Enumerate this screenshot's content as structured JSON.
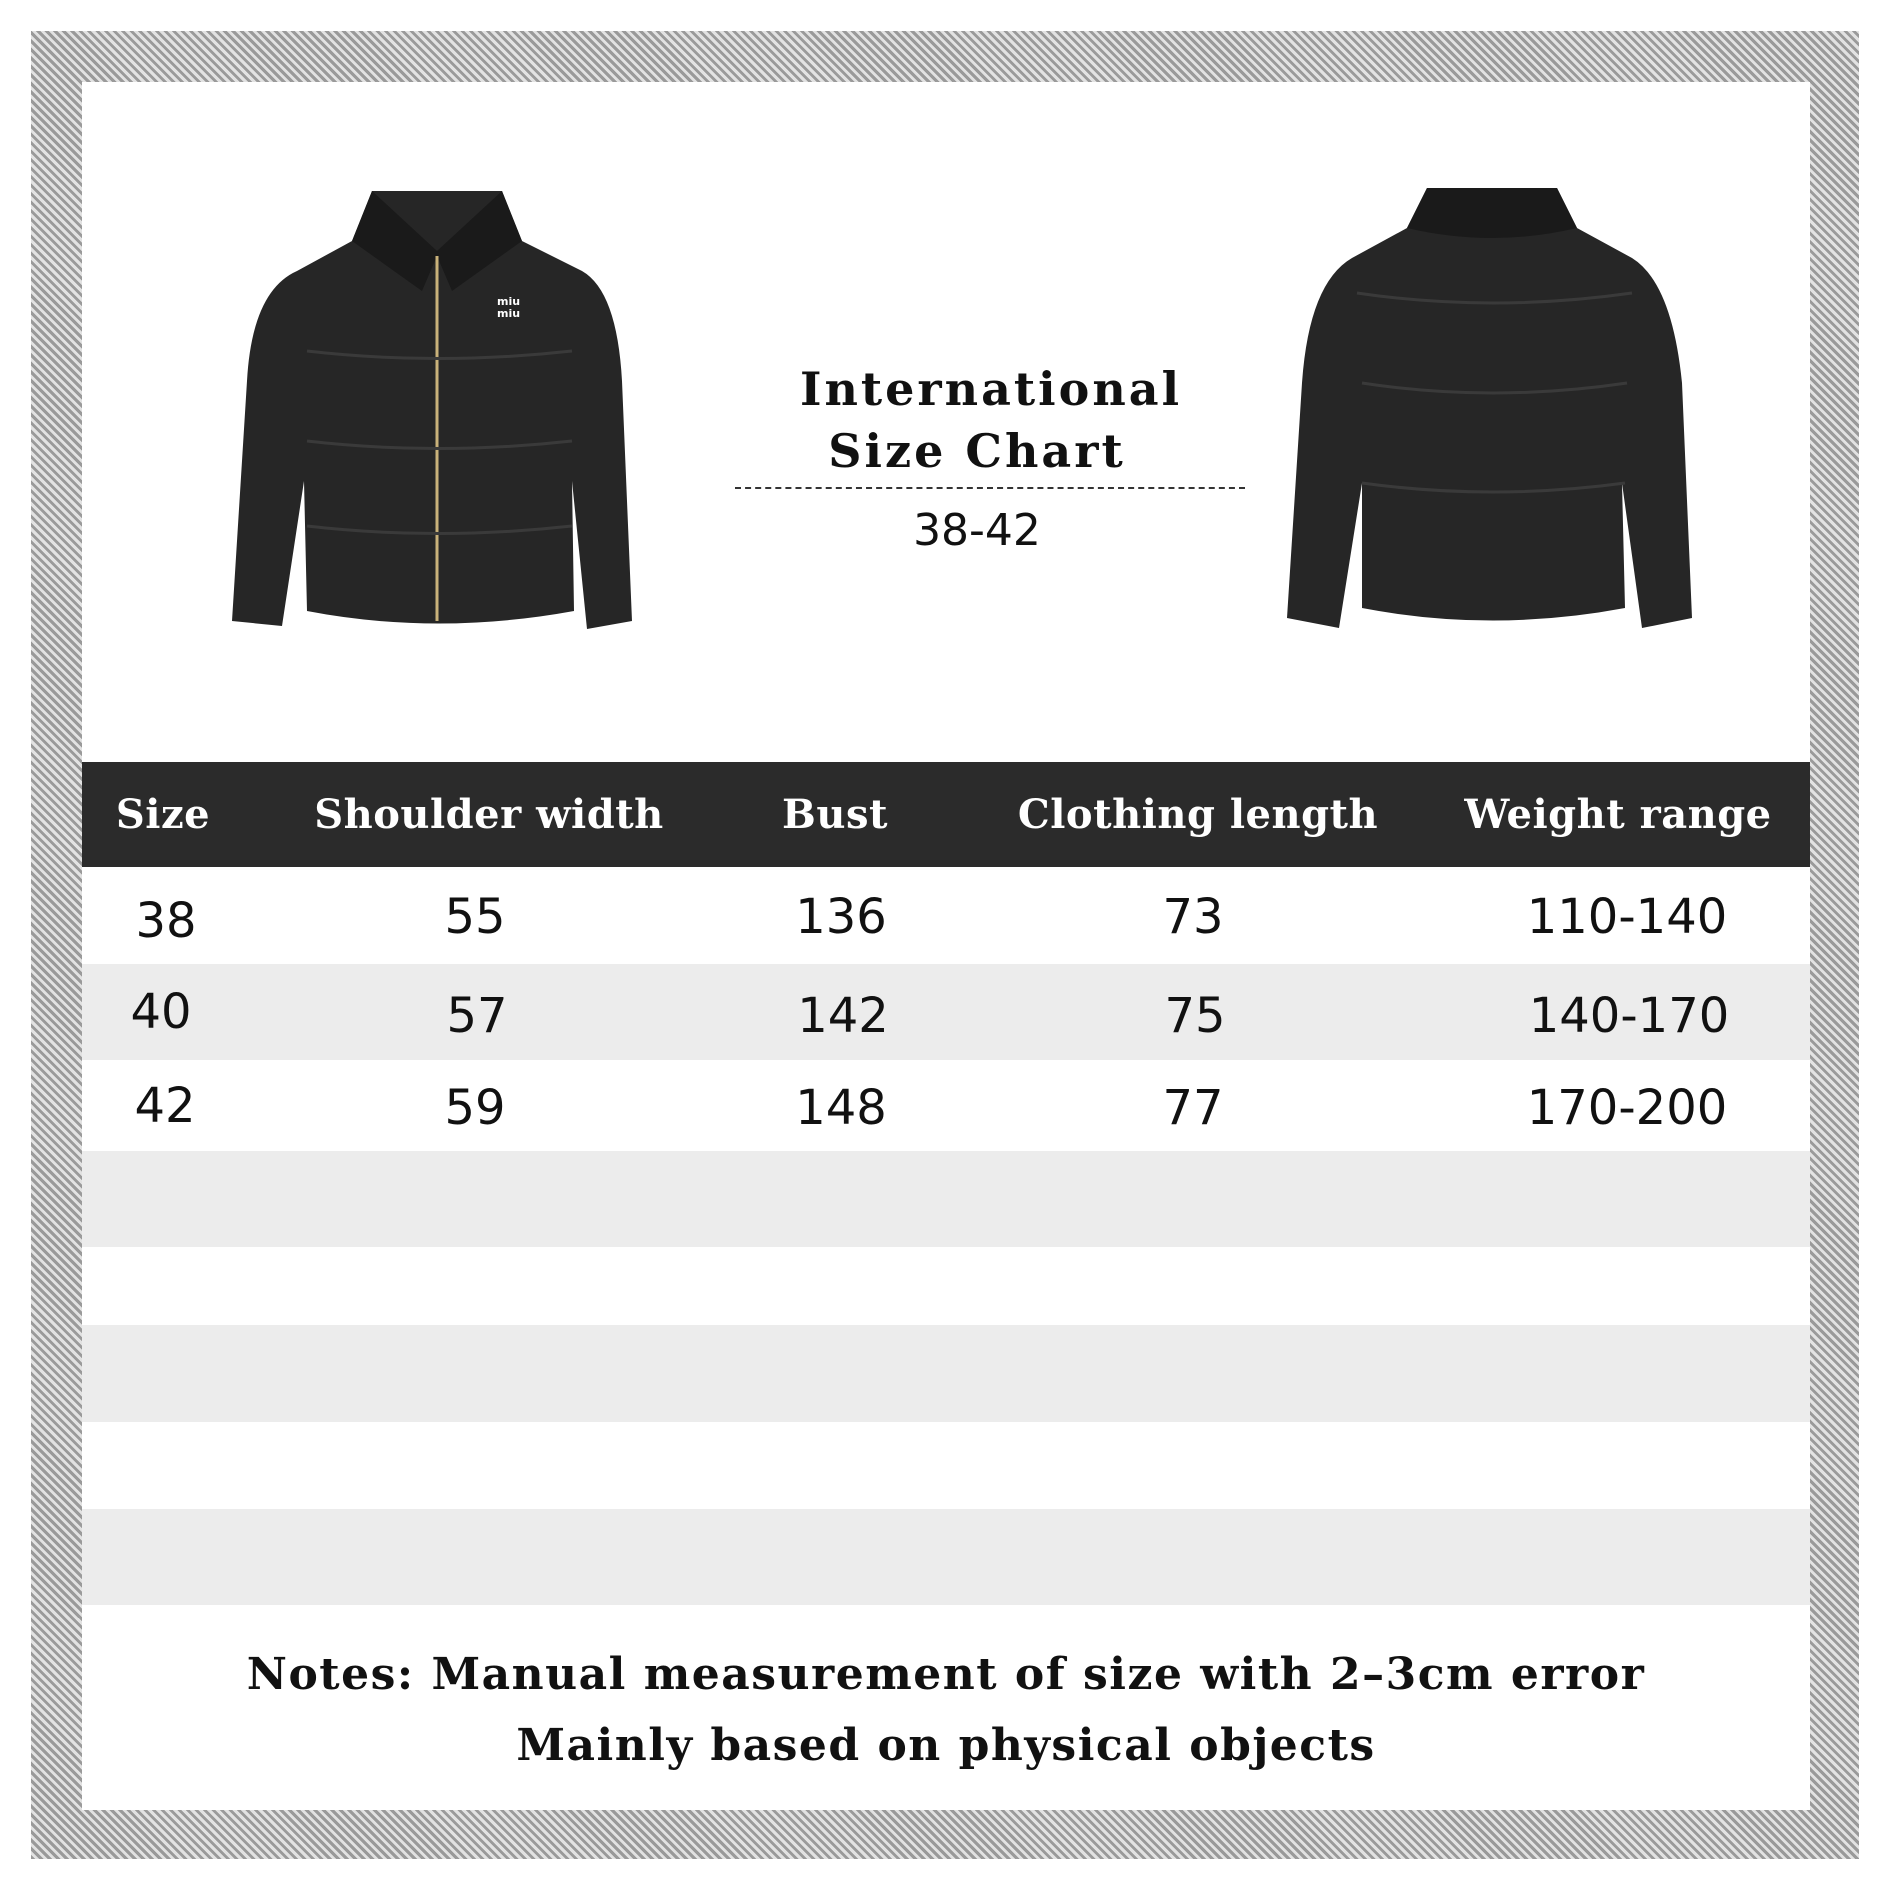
{
  "title": {
    "line1": "International",
    "line2": "Size Chart",
    "range": "38-42"
  },
  "jackets": {
    "front_logo": "miu miu",
    "color": "#262626"
  },
  "table": {
    "headers": [
      "Size",
      "Shoulder width",
      "Bust",
      "Clothing length",
      "Weight range"
    ],
    "rows": [
      [
        "38",
        "55",
        "136",
        "73",
        "110-140"
      ],
      [
        "40",
        "57",
        "142",
        "75",
        "140-170"
      ],
      [
        "42",
        "59",
        "148",
        "77",
        "170-200"
      ]
    ],
    "header_color": "#2b2b2b",
    "stripe_color": "#ececec"
  },
  "notes": {
    "line1": "Notes:  Manual measurement of size with 2–3cm error",
    "line2": "Mainly based on physical objects"
  }
}
